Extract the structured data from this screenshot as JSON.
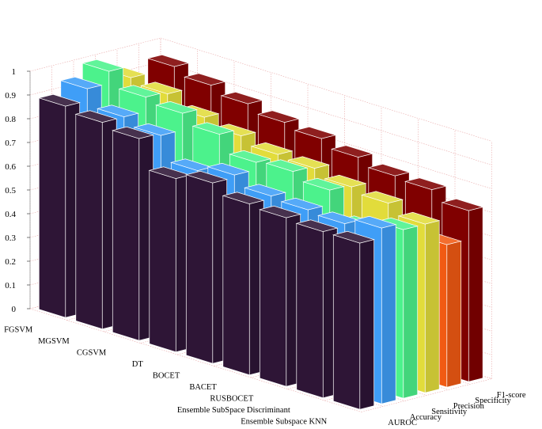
{
  "chart_data": {
    "type": "bar",
    "subtype": "3d-grouped-bar",
    "title": "",
    "xlabel": "",
    "ylabel": "",
    "zlim": [
      0,
      1
    ],
    "z_ticks": [
      "0",
      "0.1",
      "0.2",
      "0.3",
      "0.4",
      "0.5",
      "0.6",
      "0.7",
      "0.8",
      "0.9",
      "1"
    ],
    "grid": true,
    "categories": [
      "FGSVM",
      "MGSVM",
      "CGSVM",
      "DT",
      "BOCET",
      "BACET",
      "RUSBOCET",
      "Ensemble SubSpace Discriminant",
      "Ensemble Subspace KNN"
    ],
    "series": [
      {
        "name": "AUROC",
        "color": "#2e1536",
        "values": [
          0.89,
          0.87,
          0.85,
          0.73,
          0.76,
          0.72,
          0.71,
          0.7,
          0.7
        ]
      },
      {
        "name": "Accuracy",
        "color": "#3f9ef7",
        "values": [
          0.94,
          0.87,
          0.84,
          0.74,
          0.77,
          0.73,
          0.72,
          0.71,
          0.74
        ]
      },
      {
        "name": "Sensitivity",
        "color": "#4cf28c",
        "values": [
          0.99,
          0.93,
          0.91,
          0.87,
          0.8,
          0.81,
          0.78,
          0.67,
          0.71
        ]
      },
      {
        "name": "Precision",
        "color": "#e2dc3b",
        "values": [
          0.94,
          0.92,
          0.87,
          0.84,
          0.81,
          0.8,
          0.77,
          0.75,
          0.71
        ]
      },
      {
        "name": "Specificity",
        "color": "#f15a13",
        "values": [
          0.72,
          0.71,
          0.69,
          0.7,
          0.68,
          0.66,
          0.63,
          0.61,
          0.6
        ]
      },
      {
        "name": "F1-score",
        "color": "#800000",
        "values": [
          0.94,
          0.91,
          0.88,
          0.85,
          0.83,
          0.8,
          0.77,
          0.76,
          0.72
        ]
      }
    ]
  }
}
